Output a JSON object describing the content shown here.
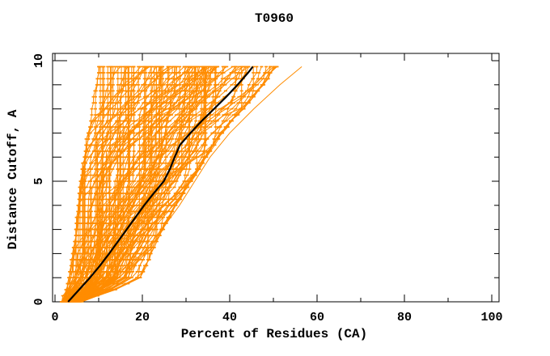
{
  "window": {
    "background": "#ffffff"
  },
  "chart_data": {
    "type": "line",
    "title": "T0960",
    "xlabel": "Percent of Residues (CA)",
    "ylabel": "Distance Cutoff, A",
    "xlim": [
      0,
      101.7
    ],
    "ylim": [
      0,
      10.3
    ],
    "grid": false,
    "legend": "none",
    "x_major_ticks": [
      0,
      20,
      40,
      60,
      80,
      100
    ],
    "x_minor_ticks": [
      10,
      30,
      50,
      70,
      90
    ],
    "y_major_ticks": [
      0,
      5,
      10
    ],
    "y_minor_ticks": [
      1,
      2,
      3,
      4,
      6,
      7,
      8,
      9
    ],
    "colors": {
      "band": "#ff8c00",
      "highlight": "#000000",
      "axis": "#000000",
      "background": "#ffffff"
    },
    "cutoff_step": 0.25,
    "cutoff_max": 9.75,
    "black_curve": {
      "cutoffs": [
        0,
        0.5,
        1,
        1.5,
        2,
        2.5,
        3,
        3.5,
        4,
        4.5,
        5,
        5.5,
        6,
        6.5,
        7,
        7.5,
        8,
        8.5,
        9,
        9.5,
        9.75
      ],
      "percents": [
        3,
        5.5,
        8,
        10.3,
        12.4,
        14.4,
        16.4,
        18.4,
        20.4,
        22.6,
        24.9,
        26.3,
        27.4,
        28.6,
        31,
        33.6,
        36.4,
        39.2,
        41.8,
        44.2,
        45.3
      ],
      "line_width": 2.2
    },
    "outlier_curve": {
      "cutoffs": [
        0,
        1,
        2,
        3,
        4,
        5,
        6,
        7,
        8,
        9,
        9.75
      ],
      "percents": [
        5,
        13,
        20,
        24.5,
        28.5,
        32,
        35.5,
        40,
        45.5,
        51.5,
        56.5
      ],
      "line_width": 1
    },
    "prediction_band": {
      "count": 120,
      "seed": 7,
      "line_width": 1,
      "cutoffs": [
        0,
        0.5,
        1,
        2,
        3,
        4,
        5,
        6,
        7,
        8,
        9,
        9.75
      ],
      "min_percent": [
        1.5,
        2.4,
        3.2,
        4.0,
        4.6,
        5.1,
        5.6,
        6.4,
        7.2,
        8.0,
        8.8,
        9.4
      ],
      "max_percent": [
        6.0,
        14.0,
        19.5,
        22.0,
        24.5,
        27.5,
        31.0,
        34.5,
        38.0,
        43.0,
        47.5,
        50.5
      ]
    }
  }
}
